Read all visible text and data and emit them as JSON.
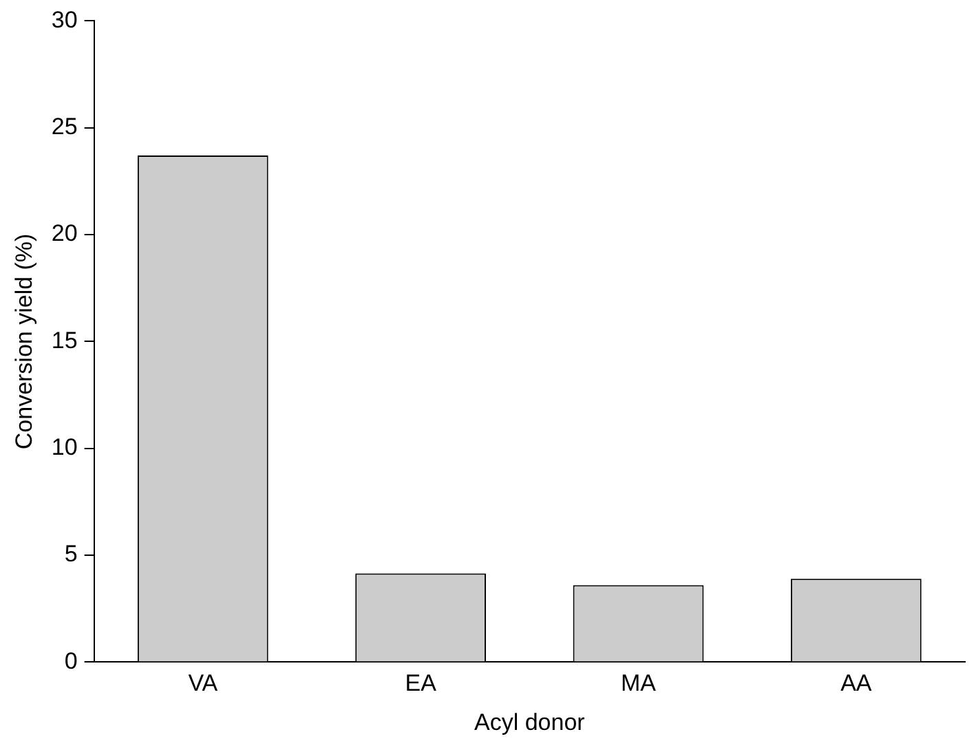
{
  "chart_data": {
    "type": "bar",
    "xlabel": "Acyl donor",
    "ylabel": "Conversion yield (%)",
    "categories": [
      "VA",
      "EA",
      "MA",
      "AA"
    ],
    "values": [
      23.7,
      4.15,
      3.6,
      3.9
    ],
    "color": "#cccccc",
    "ylim": [
      0,
      30
    ],
    "yticks": [
      0,
      5,
      10,
      15,
      20,
      25,
      30
    ],
    "grid": false,
    "legend": false
  }
}
